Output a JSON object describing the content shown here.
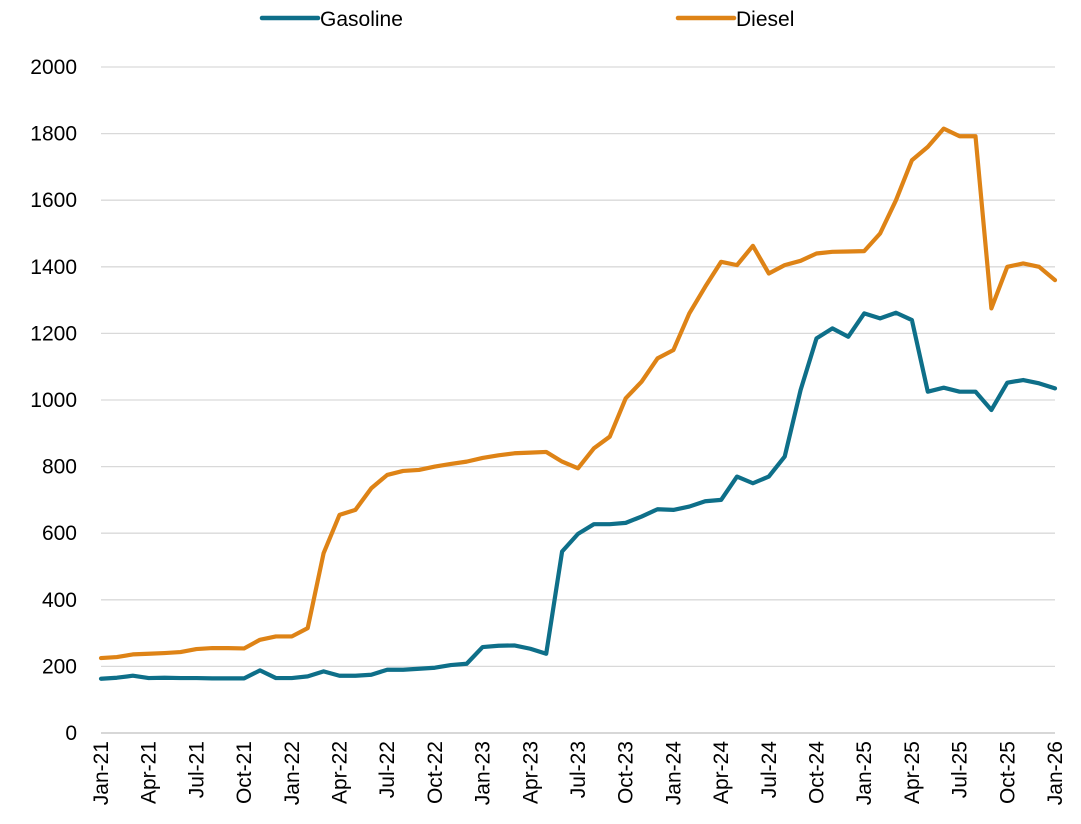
{
  "chart_data": {
    "type": "line",
    "title": "",
    "xlabel": "",
    "ylabel": "",
    "ylim": [
      0,
      2000
    ],
    "yticks": [
      0,
      200,
      400,
      600,
      800,
      1000,
      1200,
      1400,
      1600,
      1800,
      2000
    ],
    "grid": "horizontal",
    "legend_position": "top",
    "x_tick_labels": [
      "Jan-21",
      "Apr-21",
      "Jul-21",
      "Oct-21",
      "Jan-22",
      "Apr-22",
      "Jul-22",
      "Oct-22",
      "Jan-23",
      "Apr-23",
      "Jul-23",
      "Oct-23",
      "Jan-24",
      "Apr-24",
      "Jul-24",
      "Oct-24",
      "Jan-25",
      "Apr-25",
      "Jul-25",
      "Oct-25",
      "Jan-26"
    ],
    "x": [
      "Jan-21",
      "Feb-21",
      "Mar-21",
      "Apr-21",
      "May-21",
      "Jun-21",
      "Jul-21",
      "Aug-21",
      "Sep-21",
      "Oct-21",
      "Nov-21",
      "Dec-21",
      "Jan-22",
      "Feb-22",
      "Mar-22",
      "Apr-22",
      "May-22",
      "Jun-22",
      "Jul-22",
      "Aug-22",
      "Sep-22",
      "Oct-22",
      "Nov-22",
      "Dec-22",
      "Jan-23",
      "Feb-23",
      "Mar-23",
      "Apr-23",
      "May-23",
      "Jun-23",
      "Jul-23",
      "Aug-23",
      "Sep-23",
      "Oct-23",
      "Nov-23",
      "Dec-23",
      "Jan-24",
      "Feb-24",
      "Mar-24",
      "Apr-24",
      "May-24",
      "Jun-24",
      "Jul-24",
      "Aug-24",
      "Sep-24",
      "Oct-24",
      "Nov-24",
      "Dec-24",
      "Jan-25",
      "Feb-25",
      "Mar-25",
      "Apr-25",
      "May-25",
      "Jun-25",
      "Jul-25",
      "Aug-25",
      "Sep-25",
      "Oct-25",
      "Nov-25",
      "Dec-25",
      "Jan-26"
    ],
    "series": [
      {
        "name": "Gasoline",
        "color": "#0e6f89",
        "values": [
          163,
          166,
          172,
          165,
          166,
          165,
          165,
          164,
          164,
          164,
          188,
          165,
          165,
          170,
          185,
          172,
          172,
          175,
          190,
          190,
          193,
          196,
          204,
          208,
          258,
          262,
          263,
          253,
          238,
          545,
          598,
          627,
          627,
          631,
          650,
          672,
          670,
          680,
          696,
          700,
          770,
          750,
          770,
          830,
          1030,
          1185,
          1215,
          1190,
          1260,
          1245,
          1262,
          1240,
          1025,
          1037,
          1025,
          1025,
          970,
          1052,
          1060,
          1050,
          1035
        ]
      },
      {
        "name": "Diesel",
        "color": "#de8316",
        "values": [
          225,
          228,
          236,
          238,
          240,
          243,
          252,
          255,
          255,
          254,
          280,
          290,
          290,
          315,
          540,
          655,
          670,
          735,
          775,
          787,
          790,
          800,
          808,
          815,
          826,
          834,
          840,
          842,
          844,
          815,
          795,
          855,
          890,
          1005,
          1055,
          1125,
          1150,
          1260,
          1340,
          1415,
          1405,
          1463,
          1380,
          1405,
          1418,
          1440,
          1445,
          1446,
          1447,
          1500,
          1600,
          1720,
          1760,
          1815,
          1792,
          1792,
          1275,
          1400,
          1410,
          1400,
          1360
        ]
      }
    ]
  }
}
